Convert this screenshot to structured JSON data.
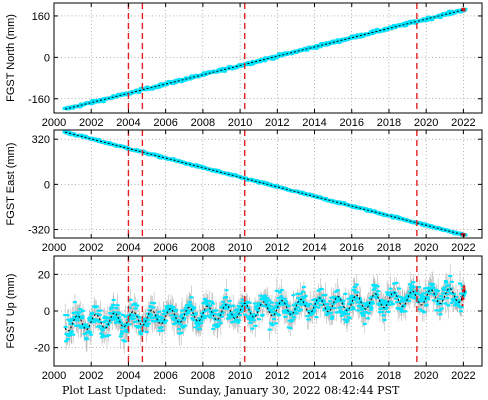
{
  "footer": {
    "label": "Plot Last Updated:",
    "timestamp": "Sunday, January 30, 2022 08:42:44 PST"
  },
  "colors": {
    "data": "#00e5ff",
    "error_bars": "#b8b8b8",
    "model": "#000000",
    "breaks": "#e02020",
    "recent": "#e02020"
  },
  "chart_data": [
    {
      "type": "scatter",
      "component": "north",
      "ylabel": "FGST North (mm)",
      "xlim": [
        2000,
        2023
      ],
      "ylim": [
        -215,
        210
      ],
      "xticks": [
        2000,
        2002,
        2004,
        2006,
        2008,
        2010,
        2012,
        2014,
        2016,
        2018,
        2020,
        2022
      ],
      "yticks": [
        -160,
        0,
        160
      ],
      "start": {
        "x": 2000.6,
        "y": -200
      },
      "end": {
        "x": 2022.08,
        "y": 185
      },
      "seasonal_amplitude": 0,
      "scatter": 4,
      "breaks_x": [
        2004.0,
        2004.75,
        2010.25,
        2019.5
      ],
      "grid": true
    },
    {
      "type": "scatter",
      "component": "east",
      "ylabel": "FGST East (mm)",
      "xlim": [
        2000,
        2023
      ],
      "ylim": [
        -380,
        385
      ],
      "xticks": [
        2000,
        2002,
        2004,
        2006,
        2008,
        2010,
        2012,
        2014,
        2016,
        2018,
        2020,
        2022
      ],
      "yticks": [
        -320,
        0,
        320
      ],
      "start": {
        "x": 2000.6,
        "y": 370
      },
      "end": {
        "x": 2022.08,
        "y": -360
      },
      "seasonal_amplitude": 0,
      "scatter": 5,
      "breaks_x": [
        2004.0,
        2004.75,
        2010.25,
        2019.5
      ],
      "grid": true
    },
    {
      "type": "scatter",
      "component": "up",
      "ylabel": "FGST Up (mm)",
      "xlim": [
        2000,
        2023
      ],
      "ylim": [
        -30,
        30
      ],
      "xticks": [
        2000,
        2002,
        2004,
        2006,
        2008,
        2010,
        2012,
        2014,
        2016,
        2018,
        2020,
        2022
      ],
      "yticks": [
        -20,
        0,
        20
      ],
      "start": {
        "x": 2000.6,
        "y": -7
      },
      "end": {
        "x": 2022.08,
        "y": 9
      },
      "seasonal_amplitude": 4,
      "scatter": 5,
      "breaks_x": [
        2004.0,
        2004.75,
        2010.25,
        2019.5
      ],
      "grid": true
    }
  ]
}
